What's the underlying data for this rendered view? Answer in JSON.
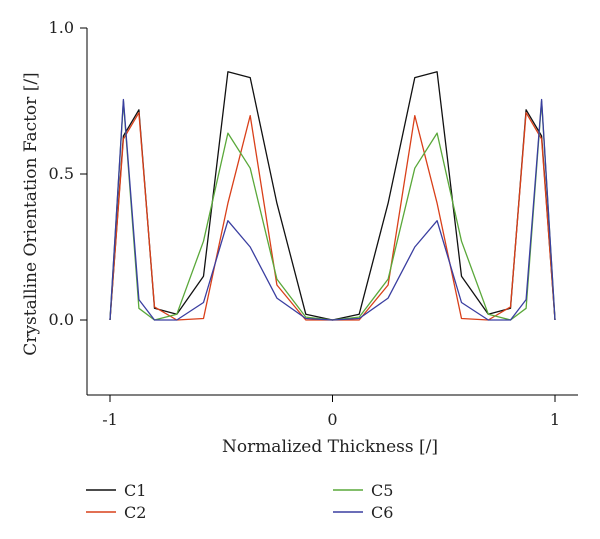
{
  "chart_data": {
    "type": "line",
    "xlabel": "Normalized Thickness [/]",
    "ylabel": "Crystalline Orientation Factor [/]",
    "xlim": [
      -1.1,
      1.1
    ],
    "ylim": [
      -0.25,
      1.0
    ],
    "x_ticks": [
      -1,
      0,
      1
    ],
    "x_tick_labels": [
      "-1",
      "0",
      "1"
    ],
    "y_ticks": [
      0,
      0.5,
      1.0
    ],
    "y_tick_labels": [
      "0.0",
      "0.5",
      "1.0"
    ],
    "grid": false,
    "legend_position": "bottom",
    "series": [
      {
        "name": "C1",
        "color": "#111111",
        "x": [
          -1.0,
          -0.94,
          -0.87,
          -0.8,
          -0.7,
          -0.58,
          -0.47,
          -0.37,
          -0.25,
          -0.12,
          0.0,
          0.12,
          0.25,
          0.37,
          0.47,
          0.58,
          0.7,
          0.8,
          0.87,
          0.94,
          1.0
        ],
        "y": [
          0.0,
          0.63,
          0.72,
          0.04,
          0.02,
          0.15,
          0.85,
          0.83,
          0.4,
          0.02,
          0.0,
          0.02,
          0.4,
          0.83,
          0.85,
          0.15,
          0.02,
          0.04,
          0.72,
          0.63,
          0.0
        ]
      },
      {
        "name": "C2",
        "color": "#d9401a",
        "x": [
          -1.0,
          -0.94,
          -0.87,
          -0.8,
          -0.7,
          -0.58,
          -0.47,
          -0.37,
          -0.25,
          -0.12,
          0.0,
          0.12,
          0.25,
          0.37,
          0.47,
          0.58,
          0.7,
          0.8,
          0.87,
          0.94,
          1.0
        ],
        "y": [
          0.0,
          0.62,
          0.71,
          0.045,
          0.0,
          0.005,
          0.4,
          0.7,
          0.12,
          0.0,
          0.0,
          0.0,
          0.12,
          0.7,
          0.4,
          0.005,
          0.0,
          0.045,
          0.71,
          0.62,
          0.0
        ]
      },
      {
        "name": "C5",
        "color": "#5aa83a",
        "x": [
          -1.0,
          -0.94,
          -0.87,
          -0.8,
          -0.7,
          -0.58,
          -0.47,
          -0.37,
          -0.25,
          -0.12,
          0.0,
          0.12,
          0.25,
          0.37,
          0.47,
          0.58,
          0.7,
          0.8,
          0.87,
          0.94,
          1.0
        ],
        "y": [
          0.0,
          0.75,
          0.04,
          0.0,
          0.02,
          0.27,
          0.64,
          0.52,
          0.14,
          0.01,
          0.0,
          0.01,
          0.14,
          0.52,
          0.64,
          0.27,
          0.02,
          0.0,
          0.04,
          0.75,
          0.0
        ]
      },
      {
        "name": "C6",
        "color": "#3a3ea0",
        "x": [
          -1.0,
          -0.94,
          -0.87,
          -0.8,
          -0.7,
          -0.58,
          -0.47,
          -0.37,
          -0.25,
          -0.12,
          0.0,
          0.12,
          0.25,
          0.37,
          0.47,
          0.58,
          0.7,
          0.8,
          0.87,
          0.94,
          1.0
        ],
        "y": [
          0.0,
          0.755,
          0.07,
          0.0,
          0.0,
          0.06,
          0.34,
          0.25,
          0.075,
          0.005,
          0.0,
          0.005,
          0.075,
          0.25,
          0.34,
          0.06,
          0.0,
          0.0,
          0.07,
          0.755,
          0.0
        ]
      }
    ]
  }
}
